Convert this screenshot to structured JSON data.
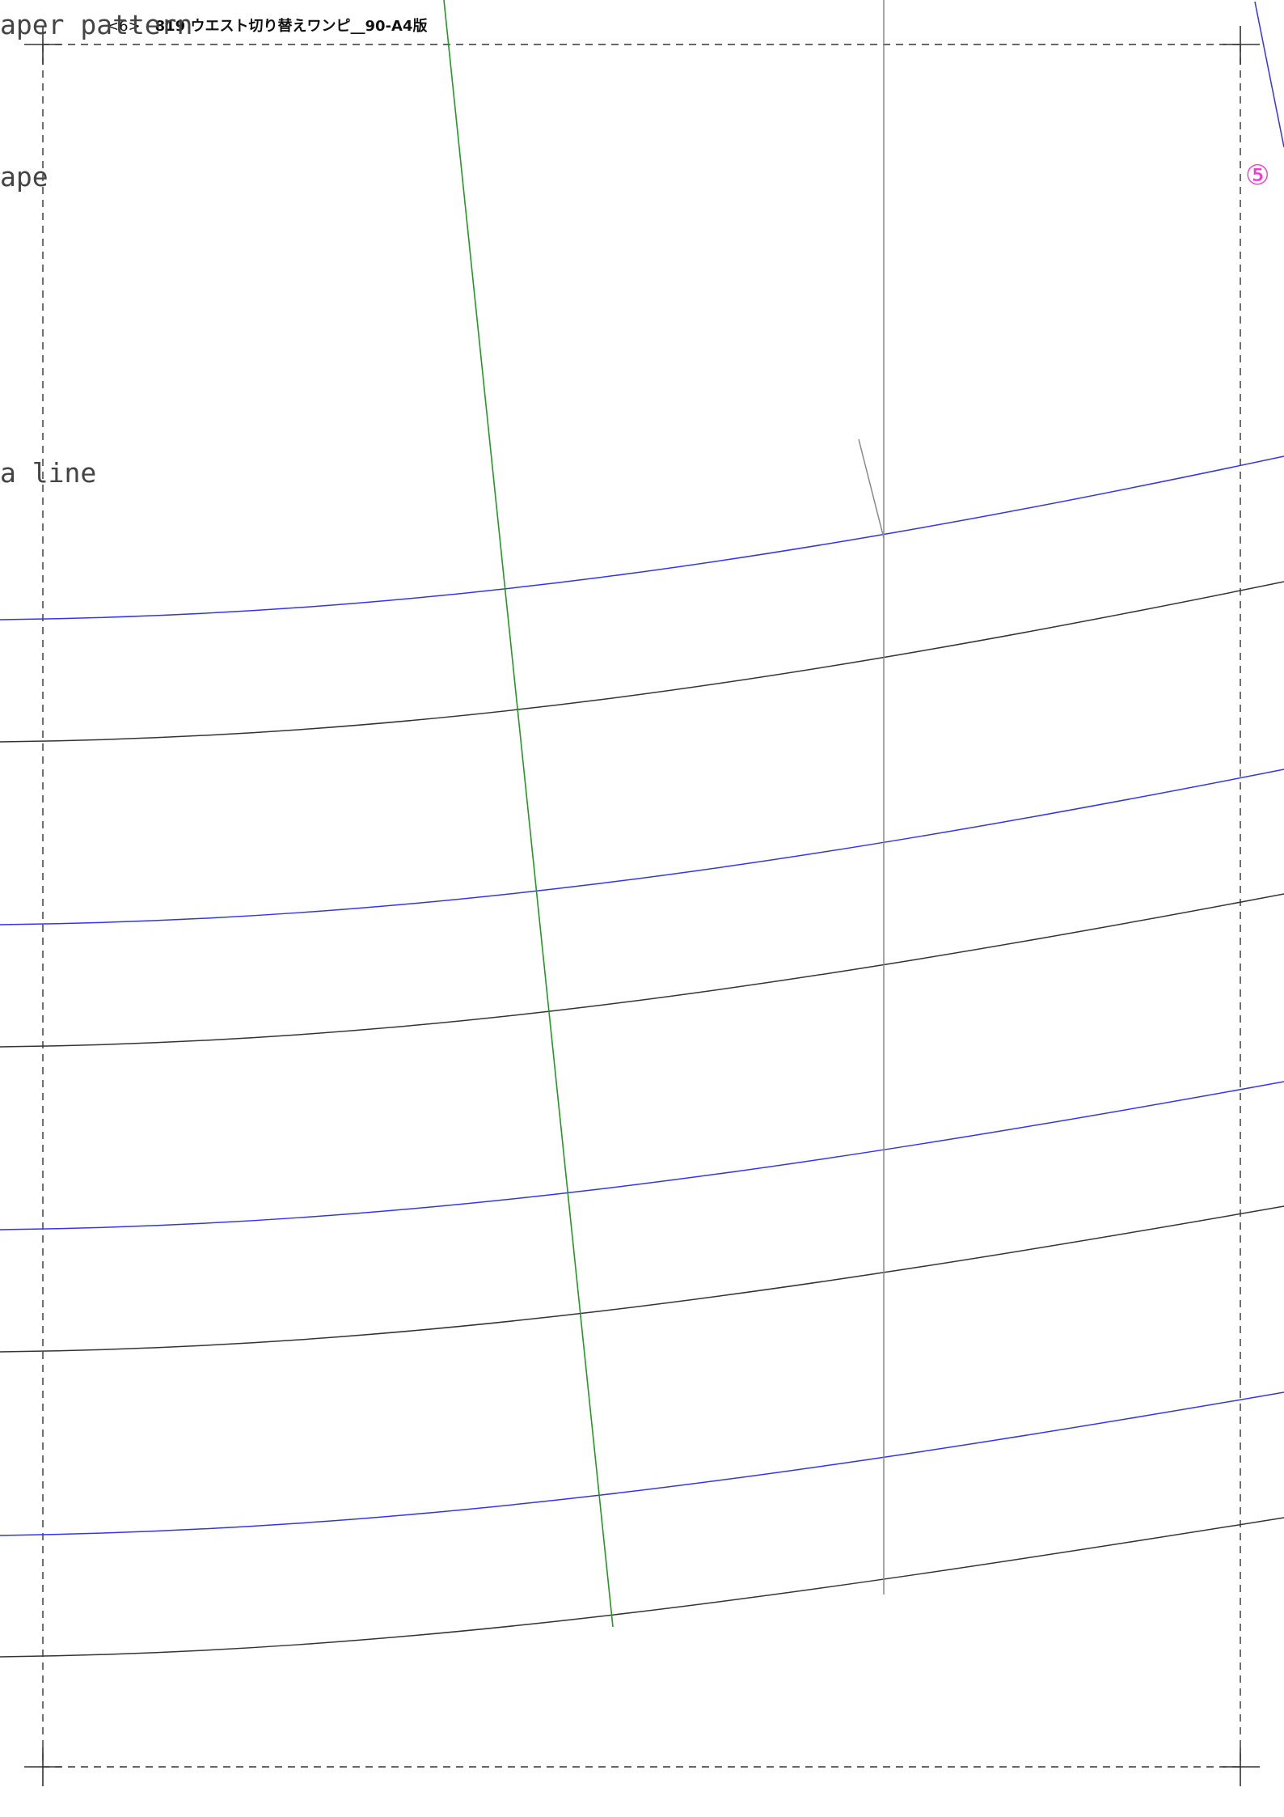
{
  "header": {
    "page_number": "<6>",
    "title": "819 ウエスト切り替えワンピ__90-A4版"
  },
  "labels": {
    "paper_pattern": "aper pattern",
    "shape": "ape",
    "line": "a line"
  },
  "piece_number": "⑤",
  "colors": {
    "background": "#ffffff",
    "cut_line": "#333333",
    "stitch_line": "#3333ee",
    "grain_line": "#229922",
    "reference_line": "#888888",
    "trim_marks": "#333333",
    "piece_number": "#ff33cc"
  }
}
